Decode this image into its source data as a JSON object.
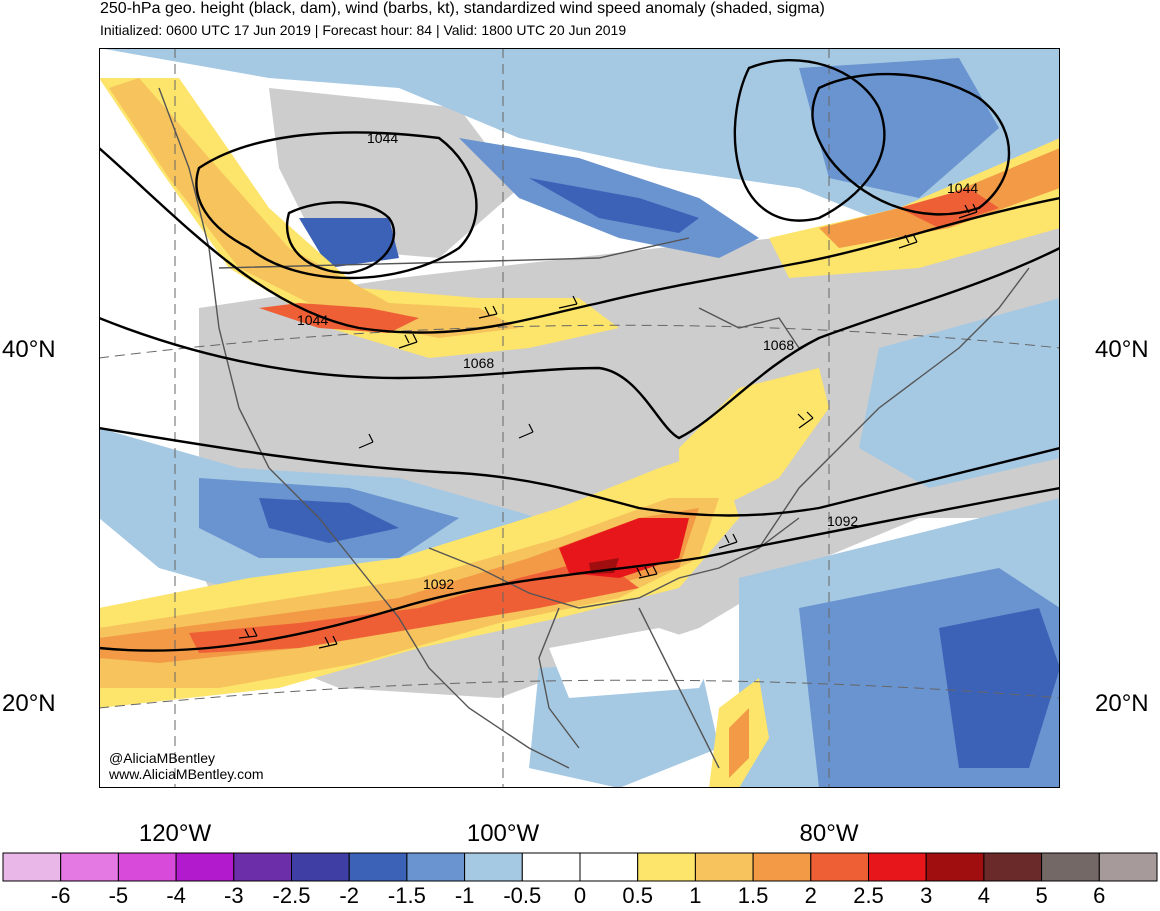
{
  "header": {
    "title": "250-hPa geo. height (black, dam), wind (barbs, kt), standardized wind speed anomaly (shaded, sigma)",
    "subtitle": "Initialized: 0600 UTC 17 Jun 2019 | Forecast hour: 84 | Valid: 1800 UTC 20 Jun 2019"
  },
  "map": {
    "lat_labels": {
      "n40_left": "40°N",
      "n40_right": "40°N",
      "n20_left": "20°N",
      "n20_right": "20°N"
    },
    "lon_labels": {
      "w120": "120°W",
      "w100": "100°W",
      "w80": "80°W"
    },
    "contour_labels": {
      "c1044a": "1044",
      "c1044b": "1044",
      "c1044c": "1044",
      "c1068a": "1068",
      "c1068b": "1068",
      "c1092a": "1092",
      "c1092b": "1092"
    },
    "credit_handle": "@AliciaMBentley",
    "credit_site": "www.AliciaMBentley.com"
  },
  "colorbar": {
    "colors": [
      "#e9b7e8",
      "#e579e4",
      "#d84ad9",
      "#b21acd",
      "#6d2ea9",
      "#3f3ea4",
      "#3c62b8",
      "#6994cf",
      "#a5c8e3",
      "#ffffff",
      "#ffffff",
      "#fde46a",
      "#f6c35c",
      "#f29a46",
      "#ef5f36",
      "#e7161b",
      "#a10e10",
      "#6b2a2a",
      "#746866",
      "#a69b9a"
    ],
    "labels": [
      "-6",
      "-5",
      "-4",
      "-3",
      "-2.5",
      "-2",
      "-1.5",
      "-1",
      "-0.5",
      "0",
      "0.5",
      "1",
      "1.5",
      "2",
      "2.5",
      "3",
      "4",
      "5",
      "6"
    ]
  }
}
